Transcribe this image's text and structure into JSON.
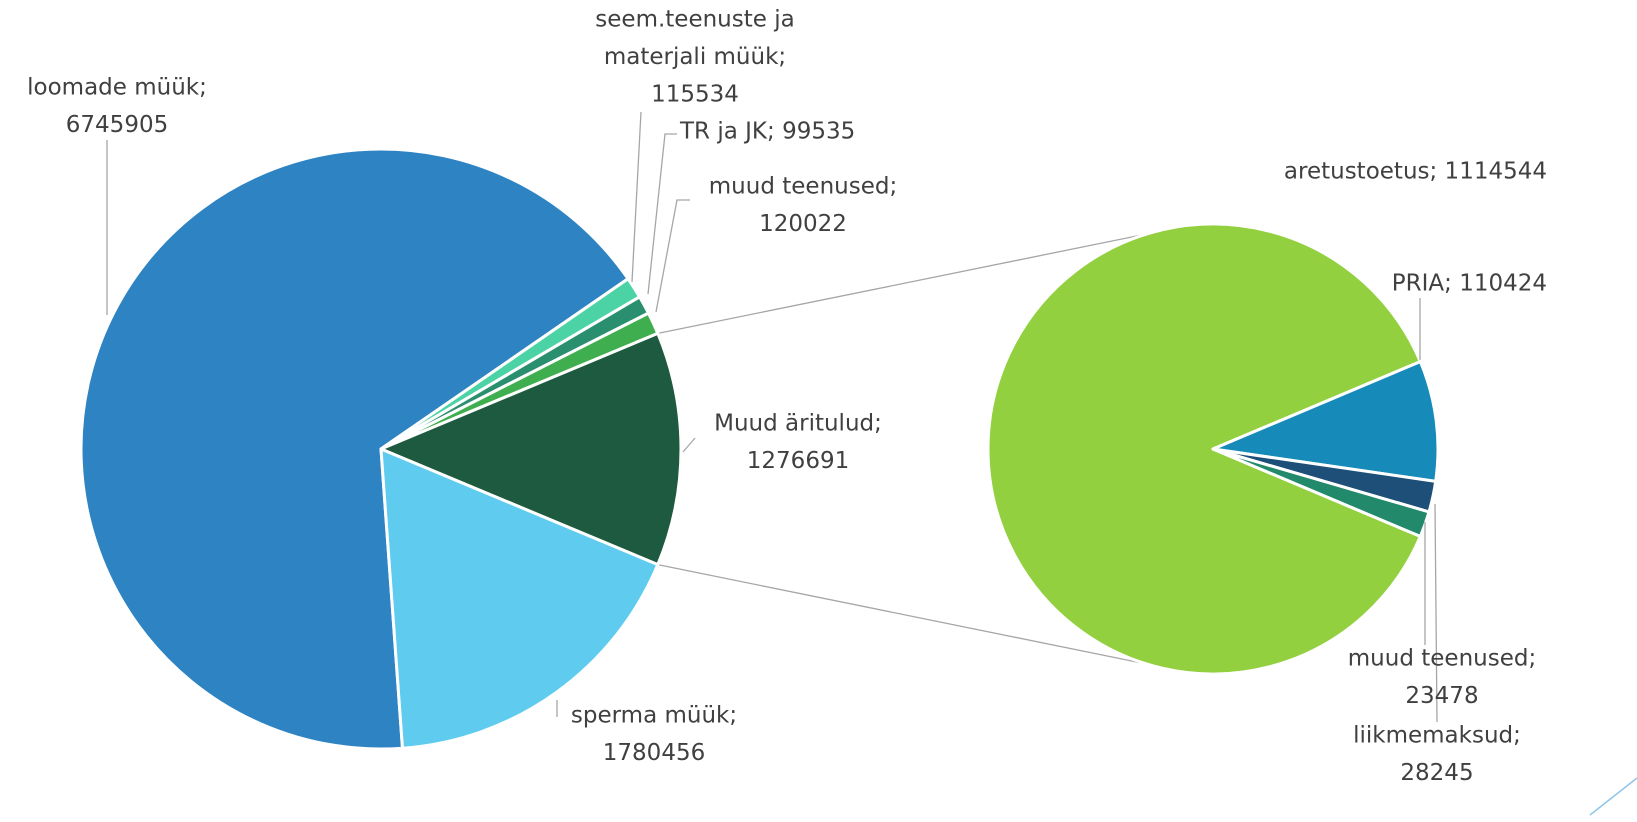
{
  "chart_data": {
    "type": "pie-of-pie",
    "values": [
      6745905,
      115534,
      99535,
      120022,
      1276691,
      1780456
    ],
    "value_labels": [
      [
        "loomade müük;",
        "6745905"
      ],
      [
        "seem.teenuste ja",
        "materjali müük;",
        "115534"
      ],
      [
        "TR ja JK; 99535"
      ],
      [
        "muud teenused;",
        "120022"
      ],
      [
        "Muud äritulud;",
        "1276691"
      ],
      [
        "sperma müük;",
        "1780456"
      ]
    ],
    "colors": [
      "#2e83c3",
      "#4bd3a6",
      "#2a8f6e",
      "#3fae4f",
      "#1e5a40",
      "#5ecbef"
    ],
    "split_index": 4,
    "secondary": {
      "values": [
        1114544,
        110424,
        28245,
        23478
      ],
      "value_labels": [
        [
          "aretustoetus; 1114544"
        ],
        [
          "PRIA; 110424"
        ],
        [
          "liikmemaksud;",
          "28245"
        ],
        [
          "muud teenused;",
          "23478"
        ]
      ],
      "colors": [
        "#93d040",
        "#168ab8",
        "#1d4f78",
        "#22896a"
      ]
    }
  }
}
